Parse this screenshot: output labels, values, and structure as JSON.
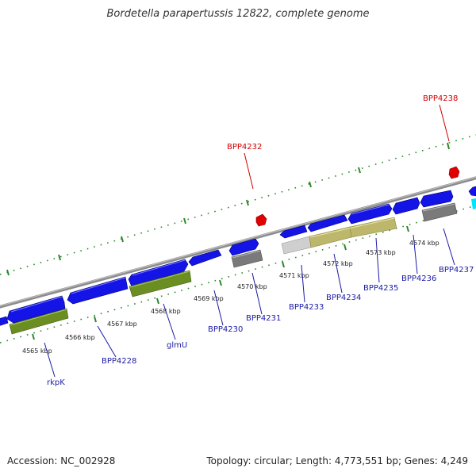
{
  "title": "Bordetella parapertussis 12822, complete genome",
  "footer": {
    "accession": "Accession: NC_002928",
    "summary": "Topology: circular; Length: 4,773,551 bp; Genes: 4,249"
  },
  "colors": {
    "cds": "#1414e6",
    "backbone": "#8c8c8c",
    "ticks": "#2a8a2a",
    "olive": "#6b8e23",
    "khaki": "#bdb76b",
    "gray_box": "#7a7a7a",
    "light_box": "#c8c8c8",
    "pseudo": "#e00000",
    "cyan": "#00e5ff"
  },
  "kbp_labels": [
    "4565 kbp",
    "4566 kbp",
    "4567 kbp",
    "4568 kbp",
    "4569 kbp",
    "4570 kbp",
    "4571 kbp",
    "4572 kbp",
    "4573 kbp",
    "4574 kbp"
  ],
  "genes_below": [
    "rkpK",
    "BPP4228",
    "glmU",
    "BPP4230",
    "BPP4231",
    "BPP4233",
    "BPP4234",
    "BPP4235",
    "BPP4236",
    "BPP4237"
  ],
  "genes_above": [
    "BPP4232",
    "BPP4238"
  ]
}
